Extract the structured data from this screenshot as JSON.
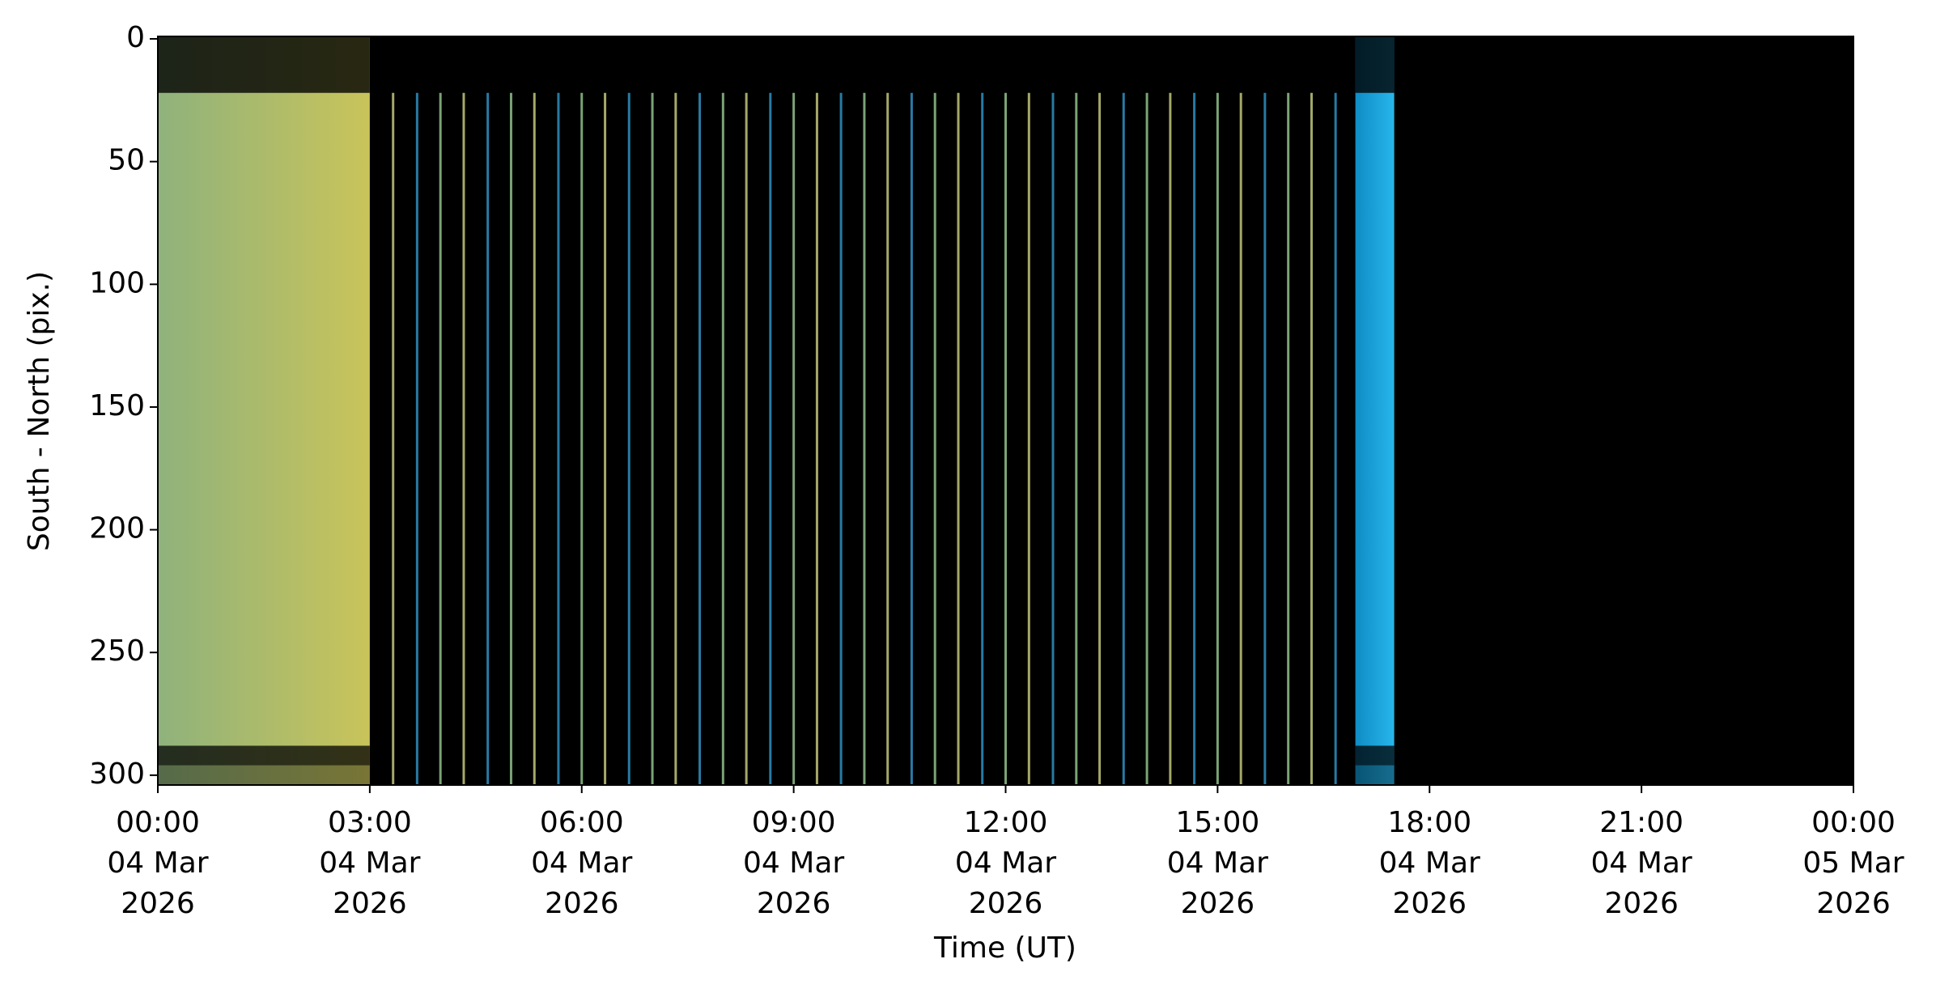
{
  "chart_data": {
    "type": "keogram",
    "xlabel": "Time (UT)",
    "ylabel": "South - North (pix.)",
    "xlim": [
      0,
      24
    ],
    "xticks": [
      {
        "value": 0,
        "label": "00:00\n04 Mar\n2026"
      },
      {
        "value": 3,
        "label": "03:00\n04 Mar\n2026"
      },
      {
        "value": 6,
        "label": "06:00\n04 Mar\n2026"
      },
      {
        "value": 9,
        "label": "09:00\n04 Mar\n2026"
      },
      {
        "value": 12,
        "label": "12:00\n04 Mar\n2026"
      },
      {
        "value": 15,
        "label": "15:00\n04 Mar\n2026"
      },
      {
        "value": 18,
        "label": "18:00\n04 Mar\n2026"
      },
      {
        "value": 21,
        "label": "21:00\n04 Mar\n2026"
      },
      {
        "value": 24,
        "label": "00:00\n05 Mar\n2026"
      }
    ],
    "ylim": [
      304,
      -1
    ],
    "yticks": [
      0,
      50,
      100,
      150,
      200,
      250,
      300
    ],
    "background": "#000000",
    "bands": [
      {
        "x": [
          0,
          3
        ],
        "colors": [
          "#8fb27c",
          "#c9c45a"
        ]
      },
      {
        "x": [
          16.95,
          17.5
        ],
        "colors": [
          "#0f8cc4",
          "#27b6ec"
        ]
      }
    ],
    "stripes": [
      3.33,
      3.67,
      4,
      4.33,
      4.67,
      5,
      5.33,
      5.67,
      6,
      6.33,
      6.67,
      7,
      7.33,
      7.67,
      8,
      8.33,
      8.67,
      9,
      9.33,
      9.67,
      10,
      10.33,
      10.67,
      11,
      11.33,
      11.67,
      12,
      12.33,
      12.67,
      13,
      13.33,
      13.67,
      14,
      14.33,
      14.67,
      15,
      15.33,
      15.67,
      16,
      16.33,
      16.67
    ],
    "stripe_colors": [
      "#c2c57a",
      "#2f8fc0",
      "#8fc08a"
    ]
  }
}
